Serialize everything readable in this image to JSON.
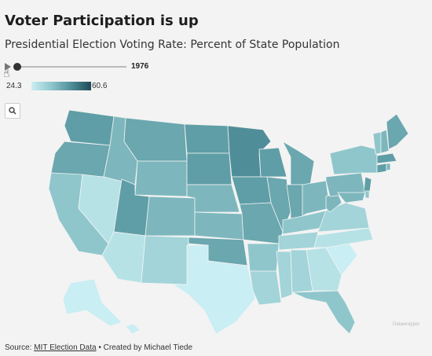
{
  "header": {
    "title": "Voter Participation is up",
    "subtitle": "Presidential Election Voting Rate: Percent of State Population"
  },
  "controls": {
    "year": "1976",
    "play_icon": "play-icon",
    "search_icon": "search-icon",
    "slider_position": 0.0
  },
  "legend": {
    "min": "24.3",
    "max": "60.6",
    "color_low": "#c9eef3",
    "color_high": "#1e4955"
  },
  "footer": {
    "source_label": "Source: ",
    "source_link": "MIT Election Data",
    "separator": " • ",
    "credit": "Created by Michael Tiede"
  },
  "watermark": "Datawrapper"
}
